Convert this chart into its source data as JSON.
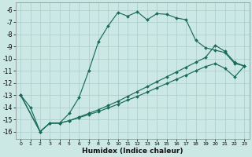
{
  "xlabel": "Humidex (Indice chaleur)",
  "bg_color": "#cce8e4",
  "grid_color": "#aacccc",
  "line_color": "#1a6b5a",
  "xlim": [
    -0.5,
    23.5
  ],
  "ylim": [
    -16.6,
    -5.4
  ],
  "yticks": [
    -6,
    -7,
    -8,
    -9,
    -10,
    -11,
    -12,
    -13,
    -14,
    -15,
    -16
  ],
  "xticks": [
    0,
    1,
    2,
    3,
    4,
    5,
    6,
    7,
    8,
    9,
    10,
    11,
    12,
    13,
    14,
    15,
    16,
    17,
    18,
    19,
    20,
    21,
    22,
    23
  ],
  "series": [
    {
      "x": [
        0,
        1,
        2,
        3,
        4,
        5,
        6,
        7,
        8,
        9,
        10,
        11,
        12,
        13,
        14,
        15,
        16,
        17,
        18,
        19,
        20,
        21,
        22,
        23
      ],
      "y": [
        -13.0,
        -14.0,
        -16.0,
        -15.3,
        -15.3,
        -14.5,
        -13.2,
        -11.0,
        -8.6,
        -7.3,
        -6.2,
        -6.5,
        -6.15,
        -6.8,
        -6.3,
        -6.35,
        -6.65,
        -6.8,
        -8.5,
        -9.1,
        -9.3,
        -9.5,
        -10.4,
        -10.6
      ]
    },
    {
      "x": [
        0,
        2,
        3,
        4,
        5,
        6,
        7,
        8,
        9,
        10,
        11,
        12,
        13,
        14,
        15,
        16,
        17,
        18,
        19,
        20,
        21,
        22,
        23
      ],
      "y": [
        -13.0,
        -16.0,
        -15.3,
        -15.3,
        -15.1,
        -14.8,
        -14.5,
        -14.2,
        -13.85,
        -13.5,
        -13.1,
        -12.7,
        -12.3,
        -11.9,
        -11.5,
        -11.1,
        -10.7,
        -10.3,
        -9.9,
        -8.9,
        -9.4,
        -10.3,
        -10.6
      ]
    },
    {
      "x": [
        0,
        2,
        3,
        4,
        5,
        6,
        7,
        8,
        9,
        10,
        11,
        12,
        13,
        14,
        15,
        16,
        17,
        18,
        19,
        20,
        21,
        22,
        23
      ],
      "y": [
        -13.0,
        -16.0,
        -15.3,
        -15.3,
        -15.1,
        -14.85,
        -14.6,
        -14.35,
        -14.05,
        -13.75,
        -13.4,
        -13.1,
        -12.75,
        -12.4,
        -12.05,
        -11.7,
        -11.35,
        -11.0,
        -10.65,
        -10.4,
        -10.8,
        -11.5,
        -10.6
      ]
    }
  ]
}
